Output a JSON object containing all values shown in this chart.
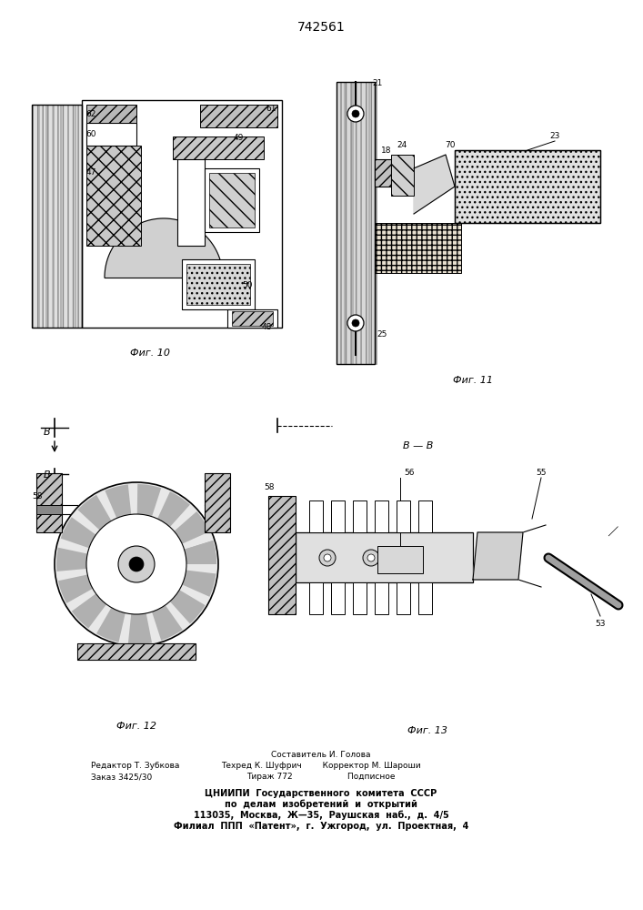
{
  "patent_number": "742561",
  "background_color": "#ffffff",
  "fig10_label": "Фиг. 10",
  "fig11_label": "Фиг. 11",
  "fig12_label": "Фиг. 12",
  "fig13_label": "Фиг. 13",
  "footer_left_1": "Редактор Т. Зубкова",
  "footer_left_2": "Заказ 3425/30",
  "footer_center_1": "Составитель И. Голова",
  "footer_center_2": "Техред К. Шуфрич        Корректор М. Шароши",
  "footer_center_3": "Тираж 772                     Подписное",
  "footer_bottom_1": "ЦНИИПИ  Государственного  комитета  СССР",
  "footer_bottom_2": "по  делам  изобретений  и  открытий",
  "footer_bottom_3": "113035,  Москва,  Ж—35,  Раушская  наб.,  д.  4/5",
  "footer_bottom_4": "Филиал  ППП  «Патент»,  г.  Ужгород,  ул.  Проектная,  4"
}
